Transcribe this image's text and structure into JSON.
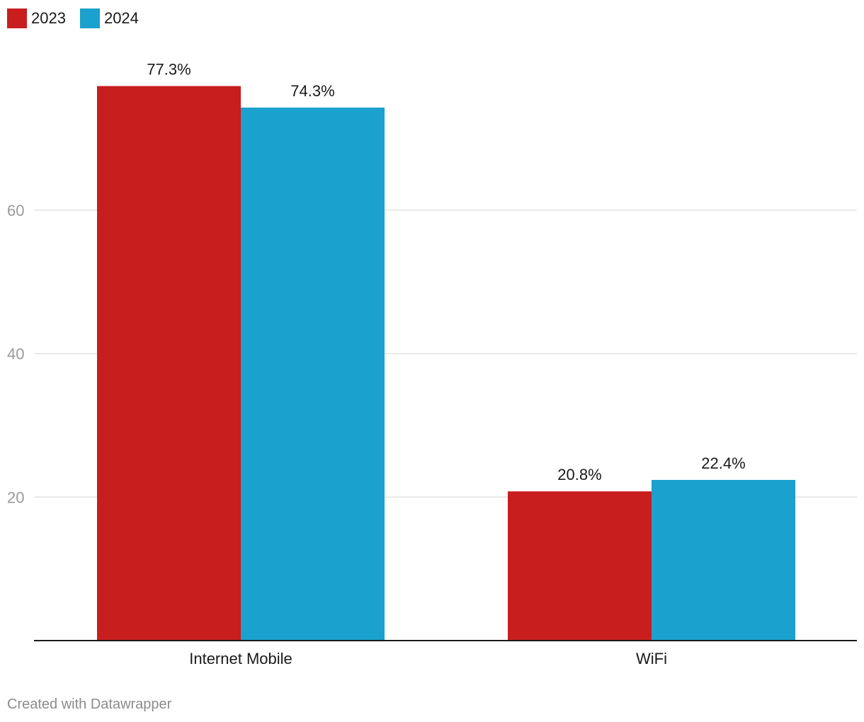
{
  "legend": [
    {
      "label": "2023",
      "color": "#c81e1e"
    },
    {
      "label": "2024",
      "color": "#1aa1cd"
    }
  ],
  "footer": {
    "text": "Created with Datawrapper"
  },
  "chart_data": {
    "type": "bar",
    "categories": [
      "Internet Mobile",
      "WiFi"
    ],
    "series": [
      {
        "name": "2023",
        "values": [
          77.3,
          20.8
        ],
        "labels": [
          "77.3%",
          "20.8%"
        ],
        "color": "#c81e1e"
      },
      {
        "name": "2024",
        "values": [
          74.3,
          22.4
        ],
        "labels": [
          "74.3%",
          "22.4%"
        ],
        "color": "#1aa1cd"
      }
    ],
    "title": "",
    "xlabel": "",
    "ylabel": "",
    "ylim": [
      0,
      80
    ],
    "yticks": [
      20,
      40,
      60
    ],
    "grid": true,
    "legend_position": "top-left"
  }
}
